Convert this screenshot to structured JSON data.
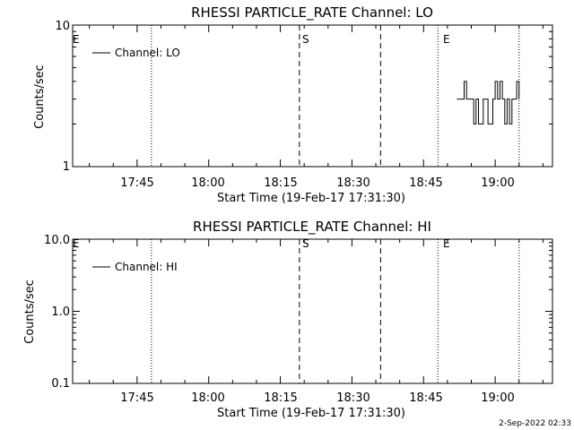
{
  "timestamp": "2-Sep-2022 02:33",
  "chart_data": [
    {
      "type": "line",
      "title": "RHESSI PARTICLE_RATE Channel: LO",
      "xlabel": "Start Time (19-Feb-17 17:31:30)",
      "ylabel": "Counts/sec",
      "y_scale": "log",
      "ylim": [
        1,
        10
      ],
      "y_ticks": [
        "10",
        "1"
      ],
      "xlim": [
        "17:31:30",
        "19:12:00"
      ],
      "x_ticks": [
        "17:45",
        "18:00",
        "18:15",
        "18:30",
        "18:45",
        "19:00"
      ],
      "legend": "Channel: LO",
      "legend_position": "top-left",
      "markers": [
        {
          "time": "17:31:30",
          "label": "E",
          "style": "none"
        },
        {
          "time": "17:48:00",
          "label": "",
          "style": "dotted"
        },
        {
          "time": "18:19:00",
          "label": "S",
          "style": "dashed"
        },
        {
          "time": "18:36:00",
          "label": "",
          "style": "dashed"
        },
        {
          "time": "18:48:00",
          "label": "E",
          "style": "dotted"
        },
        {
          "time": "19:05:00",
          "label": "",
          "style": "dotted"
        }
      ],
      "series": [
        {
          "name": "Channel: LO",
          "x": [
            "18:52:00",
            "18:53:00",
            "18:53:30",
            "18:54:00",
            "18:55:00",
            "18:55:30",
            "18:56:00",
            "18:56:30",
            "18:57:30",
            "18:58:00",
            "18:58:30",
            "18:59:00",
            "18:59:30",
            "19:00:00",
            "19:00:30",
            "19:01:00",
            "19:01:30",
            "19:02:00",
            "19:02:30",
            "19:03:00",
            "19:03:30",
            "19:04:00",
            "19:04:30",
            "19:05:00"
          ],
          "y": [
            3,
            3,
            4,
            3,
            3,
            2,
            3,
            2,
            3,
            3,
            2,
            2,
            3,
            4,
            3,
            4,
            3,
            2,
            3,
            2,
            3,
            3,
            4,
            3
          ]
        }
      ]
    },
    {
      "type": "line",
      "title": "RHESSI PARTICLE_RATE Channel: HI",
      "xlabel": "Start Time (19-Feb-17 17:31:30)",
      "ylabel": "Counts/sec",
      "y_scale": "log",
      "ylim": [
        0.1,
        10
      ],
      "y_ticks": [
        "10.0",
        "1.0",
        "0.1"
      ],
      "xlim": [
        "17:31:30",
        "19:12:00"
      ],
      "x_ticks": [
        "17:45",
        "18:00",
        "18:15",
        "18:30",
        "18:45",
        "19:00"
      ],
      "legend": "Channel: HI",
      "legend_position": "top-left",
      "markers": [
        {
          "time": "17:31:30",
          "label": "E",
          "style": "none"
        },
        {
          "time": "17:48:00",
          "label": "",
          "style": "dotted"
        },
        {
          "time": "18:19:00",
          "label": "S",
          "style": "dashed"
        },
        {
          "time": "18:36:00",
          "label": "",
          "style": "dashed"
        },
        {
          "time": "18:48:00",
          "label": "E",
          "style": "dotted"
        },
        {
          "time": "19:05:00",
          "label": "",
          "style": "dotted"
        }
      ],
      "series": [
        {
          "name": "Channel: HI",
          "x": [],
          "y": []
        }
      ]
    }
  ]
}
